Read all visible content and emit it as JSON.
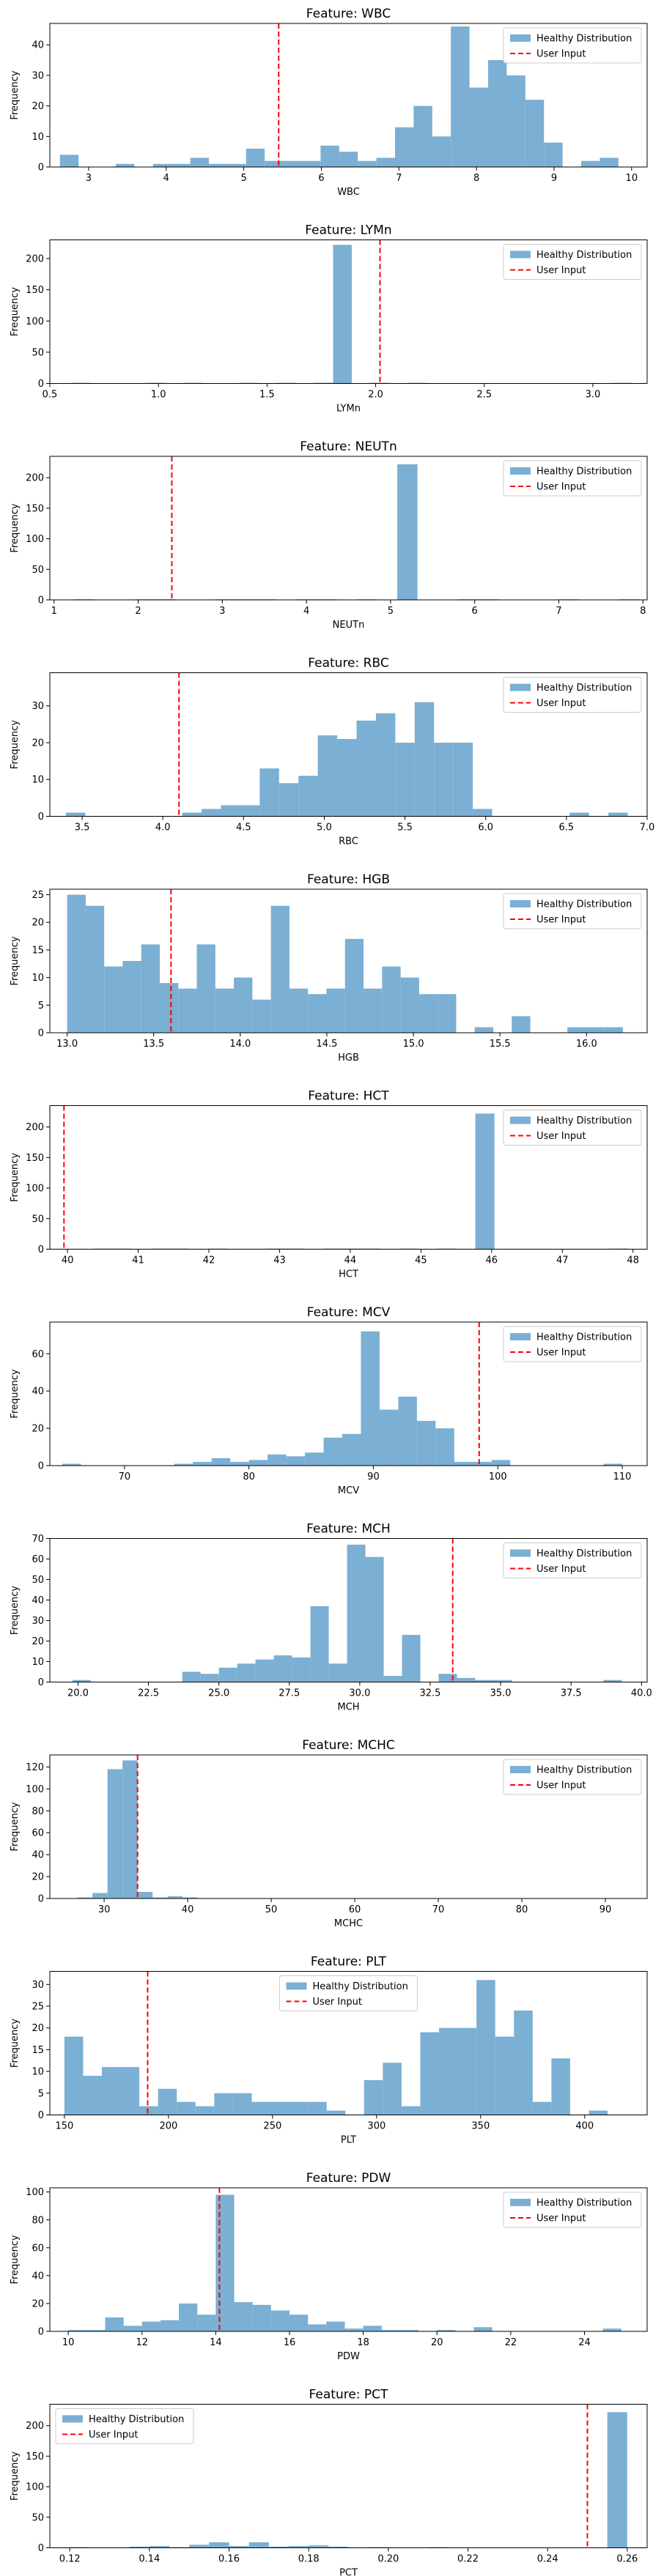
{
  "colors": {
    "bar": "#7bafd4",
    "user_line": "#ff0000",
    "axes": "#000000"
  },
  "chart_data": [
    {
      "type": "bar",
      "title": "Feature: WBC",
      "xlabel": "WBC",
      "ylabel": "Frequency",
      "xlim": [
        2.5,
        10.2
      ],
      "ylim": [
        0,
        47
      ],
      "xticks": [
        3,
        4,
        5,
        6,
        7,
        8,
        9,
        10
      ],
      "yticks": [
        0,
        10,
        20,
        30,
        40
      ],
      "user_input": 5.45,
      "legend_loc": "top-right",
      "legend": [
        "Healthy Distribution",
        "User Input"
      ],
      "bins": [
        2.63,
        2.87,
        3.11,
        3.35,
        3.59,
        3.83,
        4.07,
        4.31,
        4.55,
        4.79,
        5.03,
        5.27,
        5.51,
        5.75,
        5.99,
        6.23,
        6.47,
        6.71,
        6.95,
        7.19,
        7.43,
        7.67,
        7.91,
        8.15,
        8.39,
        8.63,
        8.87,
        9.11,
        9.35,
        9.59,
        9.83,
        10.07
      ],
      "counts": [
        4,
        0,
        0,
        1,
        0,
        1,
        1,
        3,
        1,
        1,
        6,
        2,
        2,
        2,
        7,
        5,
        2,
        3,
        13,
        20,
        10,
        46,
        26,
        35,
        30,
        22,
        8,
        0,
        2,
        3,
        0
      ]
    },
    {
      "type": "bar",
      "title": "Feature: LYMn",
      "xlabel": "LYMn",
      "ylabel": "Frequency",
      "xlim": [
        0.5,
        3.25
      ],
      "ylim": [
        0,
        230
      ],
      "xticks": [
        0.5,
        1.0,
        1.5,
        2.0,
        2.5,
        3.0
      ],
      "yticks": [
        0,
        50,
        100,
        150,
        200
      ],
      "user_input": 2.02,
      "legend_loc": "top-right",
      "legend": [
        "Healthy Distribution",
        "User Input"
      ],
      "bins": [
        0.6,
        0.686,
        0.772,
        0.858,
        0.944,
        1.03,
        1.116,
        1.202,
        1.288,
        1.374,
        1.46,
        1.546,
        1.632,
        1.718,
        1.804,
        1.89,
        1.976,
        2.062,
        2.148,
        2.234,
        2.32,
        2.406,
        2.492,
        2.578,
        2.664,
        2.75,
        2.836,
        2.922,
        3.008,
        3.094,
        3.18
      ],
      "counts": [
        1,
        0,
        0,
        0,
        1,
        0,
        1,
        0,
        0,
        1,
        0,
        1,
        0,
        1,
        222,
        0,
        1,
        0,
        1,
        0,
        0,
        0,
        0,
        0,
        0,
        0,
        0,
        0,
        0,
        1
      ]
    },
    {
      "type": "bar",
      "title": "Feature: NEUTn",
      "xlabel": "NEUTn",
      "ylabel": "Frequency",
      "xlim": [
        0.95,
        8.05
      ],
      "ylim": [
        0,
        235
      ],
      "xticks": [
        1,
        2,
        3,
        4,
        5,
        6,
        7,
        8
      ],
      "yticks": [
        0,
        50,
        100,
        150,
        200
      ],
      "user_input": 2.4,
      "legend_loc": "top-right",
      "legend": [
        "Healthy Distribution",
        "User Input"
      ],
      "bins": [
        1.24,
        1.48,
        1.72,
        1.96,
        2.2,
        2.44,
        2.68,
        2.92,
        3.16,
        3.4,
        3.64,
        3.88,
        4.12,
        4.36,
        4.6,
        4.84,
        5.08,
        5.32,
        5.56,
        5.8,
        6.04,
        6.28,
        6.52,
        6.76,
        7.0,
        7.24,
        7.48,
        7.72,
        7.96
      ],
      "counts": [
        1,
        0,
        0,
        1,
        1,
        0,
        0,
        1,
        1,
        1,
        0,
        1,
        1,
        0,
        1,
        0,
        222,
        0,
        0,
        1,
        1,
        0,
        0,
        0,
        1,
        0,
        0,
        1
      ]
    },
    {
      "type": "bar",
      "title": "Feature: RBC",
      "xlabel": "RBC",
      "ylabel": "Frequency",
      "xlim": [
        3.3,
        7.0
      ],
      "ylim": [
        0,
        39
      ],
      "xticks": [
        3.5,
        4.0,
        4.5,
        5.0,
        5.5,
        6.0,
        6.5,
        7.0
      ],
      "yticks": [
        0,
        10,
        20,
        30
      ],
      "user_input": 4.1,
      "legend_loc": "top-right",
      "legend": [
        "Healthy Distribution",
        "User Input"
      ],
      "bins": [
        3.4,
        3.52,
        3.64,
        3.76,
        3.88,
        4.0,
        4.12,
        4.24,
        4.36,
        4.48,
        4.6,
        4.72,
        4.84,
        4.96,
        5.08,
        5.2,
        5.32,
        5.44,
        5.56,
        5.68,
        5.8,
        5.92,
        6.04,
        6.16,
        6.28,
        6.4,
        6.52,
        6.64,
        6.76,
        6.88,
        7.0
      ],
      "counts": [
        1,
        0,
        0,
        0,
        0,
        0,
        1,
        2,
        3,
        3,
        13,
        9,
        11,
        22,
        21,
        26,
        28,
        20,
        31,
        20,
        20,
        2,
        0,
        0,
        0,
        0,
        1,
        0,
        1,
        0
      ]
    },
    {
      "type": "bar",
      "title": "Feature: HGB",
      "xlabel": "HGB",
      "ylabel": "Frequency",
      "xlim": [
        12.9,
        16.35
      ],
      "ylim": [
        0,
        26
      ],
      "xticks": [
        13.0,
        13.5,
        14.0,
        14.5,
        15.0,
        15.5,
        16.0
      ],
      "yticks": [
        0,
        5,
        10,
        15,
        20,
        25
      ],
      "user_input": 13.6,
      "legend_loc": "top-right",
      "legend": [
        "Healthy Distribution",
        "User Input"
      ],
      "bins": [
        13.0,
        13.107,
        13.214,
        13.321,
        13.428,
        13.535,
        13.642,
        13.749,
        13.856,
        13.963,
        14.07,
        14.177,
        14.284,
        14.391,
        14.498,
        14.605,
        14.712,
        14.819,
        14.926,
        15.033,
        15.14,
        15.247,
        15.354,
        15.461,
        15.568,
        15.675,
        15.782,
        15.889,
        15.996,
        16.103,
        16.21
      ],
      "counts": [
        25,
        23,
        12,
        13,
        16,
        9,
        8,
        16,
        8,
        10,
        6,
        23,
        8,
        7,
        8,
        17,
        8,
        12,
        10,
        7,
        7,
        0,
        1,
        0,
        3,
        0,
        0,
        1,
        1,
        1
      ]
    },
    {
      "type": "bar",
      "title": "Feature: HCT",
      "xlabel": "HCT",
      "ylabel": "Frequency",
      "xlim": [
        39.75,
        48.2
      ],
      "ylim": [
        0,
        235
      ],
      "xticks": [
        40,
        41,
        42,
        43,
        44,
        45,
        46,
        47,
        48
      ],
      "yticks": [
        0,
        50,
        100,
        150,
        200
      ],
      "user_input": 39.95,
      "legend_loc": "top-right",
      "legend": [
        "Healthy Distribution",
        "User Input"
      ],
      "bins": [
        40.1,
        40.37,
        40.64,
        40.91,
        41.18,
        41.45,
        41.72,
        41.99,
        42.26,
        42.53,
        42.8,
        43.07,
        43.34,
        43.61,
        43.88,
        44.15,
        44.42,
        44.69,
        44.96,
        45.23,
        45.5,
        45.77,
        46.04,
        46.31,
        46.58,
        46.85,
        47.12,
        47.39,
        47.66,
        47.93
      ],
      "counts": [
        0,
        1,
        1,
        0,
        1,
        1,
        0,
        1,
        0,
        0,
        1,
        1,
        0,
        1,
        1,
        1,
        0,
        1,
        0,
        1,
        0,
        222,
        0,
        0,
        0,
        0,
        0,
        0,
        1
      ]
    },
    {
      "type": "bar",
      "title": "Feature: MCV",
      "xlabel": "MCV",
      "ylabel": "Frequency",
      "xlim": [
        64,
        112
      ],
      "ylim": [
        0,
        77
      ],
      "xticks": [
        70,
        80,
        90,
        100,
        110
      ],
      "yticks": [
        0,
        20,
        40,
        60
      ],
      "user_input": 98.5,
      "legend_loc": "top-right",
      "legend": [
        "Healthy Distribution",
        "User Input"
      ],
      "bins": [
        65.0,
        66.5,
        68.0,
        69.5,
        71.0,
        72.5,
        74.0,
        75.5,
        77.0,
        78.5,
        80.0,
        81.5,
        83.0,
        84.5,
        86.0,
        87.5,
        89.0,
        90.5,
        92.0,
        93.5,
        95.0,
        96.5,
        98.0,
        99.5,
        101.0,
        102.5,
        104.0,
        105.5,
        107.0,
        108.5,
        110.0,
        111.5
      ],
      "counts": [
        1,
        0,
        0,
        0,
        0,
        0,
        1,
        2,
        4,
        2,
        3,
        6,
        5,
        7,
        15,
        17,
        72,
        30,
        37,
        24,
        20,
        2,
        2,
        3,
        0,
        0,
        0,
        0,
        0,
        1,
        0
      ]
    },
    {
      "type": "bar",
      "title": "Feature: MCH",
      "xlabel": "MCH",
      "ylabel": "Frequency",
      "xlim": [
        19,
        40.2
      ],
      "ylim": [
        0,
        70
      ],
      "xticks": [
        20.0,
        22.5,
        25.0,
        27.5,
        30.0,
        32.5,
        35.0,
        37.5,
        40.0
      ],
      "yticks": [
        0,
        10,
        20,
        30,
        40,
        50,
        60,
        70
      ],
      "user_input": 33.3,
      "legend_loc": "top-right",
      "legend": [
        "Healthy Distribution",
        "User Input"
      ],
      "bins": [
        19.8,
        20.45,
        21.1,
        21.75,
        22.4,
        23.05,
        23.7,
        24.35,
        25.0,
        25.65,
        26.3,
        26.95,
        27.6,
        28.25,
        28.9,
        29.55,
        30.2,
        30.85,
        31.5,
        32.15,
        32.8,
        33.45,
        34.1,
        34.75,
        35.4,
        36.05,
        36.7,
        37.35,
        38.0,
        38.65,
        39.3
      ],
      "counts": [
        1,
        0,
        0,
        0,
        0,
        0,
        5,
        4,
        7,
        9,
        11,
        13,
        12,
        37,
        9,
        67,
        61,
        3,
        23,
        0,
        4,
        2,
        1,
        1,
        0,
        0,
        0,
        0,
        0,
        1
      ]
    },
    {
      "type": "bar",
      "title": "Feature: MCHC",
      "xlabel": "MCHC",
      "ylabel": "Frequency",
      "xlim": [
        23.5,
        95
      ],
      "ylim": [
        0,
        131
      ],
      "xticks": [
        30,
        40,
        50,
        60,
        70,
        80,
        90
      ],
      "yticks": [
        0,
        20,
        40,
        60,
        80,
        100,
        120
      ],
      "user_input": 34.0,
      "legend_loc": "top-right",
      "legend": [
        "Healthy Distribution",
        "User Input"
      ],
      "bins": [
        26.8,
        28.6,
        30.4,
        32.2,
        34.0,
        35.8,
        37.6,
        39.4,
        41.2
      ],
      "counts": [
        1,
        5,
        118,
        126,
        6,
        1,
        2,
        1
      ]
    },
    {
      "type": "bar",
      "title": "Feature: PLT",
      "xlabel": "PLT",
      "ylabel": "Frequency",
      "xlim": [
        143,
        430
      ],
      "ylim": [
        0,
        33
      ],
      "xticks": [
        150,
        200,
        250,
        300,
        350,
        400
      ],
      "yticks": [
        0,
        5,
        10,
        15,
        20,
        25,
        30
      ],
      "user_input": 190,
      "legend_loc": "top-center",
      "legend": [
        "Healthy Distribution",
        "User Input"
      ],
      "bins": [
        150,
        159,
        168,
        177,
        186,
        195,
        204,
        213,
        222,
        231,
        240,
        249,
        258,
        267,
        276,
        285,
        294,
        303,
        312,
        321,
        330,
        339,
        348,
        357,
        366,
        375,
        384,
        393,
        402,
        411,
        420
      ],
      "counts": [
        18,
        9,
        11,
        11,
        2,
        6,
        3,
        2,
        5,
        5,
        3,
        3,
        3,
        3,
        1,
        0,
        8,
        12,
        2,
        19,
        20,
        20,
        31,
        18,
        24,
        3,
        13,
        0,
        1,
        0
      ]
    },
    {
      "type": "bar",
      "title": "Feature: PDW",
      "xlabel": "PDW",
      "ylabel": "Frequency",
      "xlim": [
        9.5,
        25.7
      ],
      "ylim": [
        0,
        103
      ],
      "xticks": [
        10,
        12,
        14,
        16,
        18,
        20,
        22,
        24
      ],
      "yticks": [
        0,
        20,
        40,
        60,
        80,
        100
      ],
      "user_input": 14.1,
      "legend_loc": "top-right",
      "legend": [
        "Healthy Distribution",
        "User Input"
      ],
      "bins": [
        10.0,
        10.5,
        11.0,
        11.5,
        12.0,
        12.5,
        13.0,
        13.5,
        14.0,
        14.5,
        15.0,
        15.5,
        16.0,
        16.5,
        17.0,
        17.5,
        18.0,
        18.5,
        19.0,
        19.5,
        20.0,
        20.5,
        21.0,
        21.5,
        22.0,
        22.5,
        23.0,
        23.5,
        24.0,
        24.5,
        25.0
      ],
      "counts": [
        1,
        1,
        10,
        4,
        7,
        8,
        20,
        12,
        98,
        21,
        19,
        15,
        12,
        5,
        7,
        2,
        4,
        1,
        1,
        0,
        1,
        0,
        3,
        0,
        0,
        0,
        0,
        0,
        0,
        2
      ]
    },
    {
      "type": "bar",
      "title": "Feature: PCT",
      "xlabel": "PCT",
      "ylabel": "Frequency",
      "xlim": [
        0.115,
        0.265
      ],
      "ylim": [
        0,
        235
      ],
      "xticks": [
        0.12,
        0.14,
        0.16,
        0.18,
        0.2,
        0.22,
        0.24,
        0.26
      ],
      "yticks": [
        0,
        50,
        100,
        150,
        200
      ],
      "user_input": 0.25,
      "legend_loc": "top-left",
      "legend": [
        "Healthy Distribution",
        "User Input"
      ],
      "bins": [
        0.12,
        0.125,
        0.13,
        0.135,
        0.14,
        0.145,
        0.15,
        0.155,
        0.16,
        0.165,
        0.17,
        0.175,
        0.18,
        0.185,
        0.19,
        0.195,
        0.2,
        0.205,
        0.21,
        0.215,
        0.22,
        0.225,
        0.23,
        0.235,
        0.24,
        0.245,
        0.25,
        0.255,
        0.26
      ],
      "counts": [
        1,
        0,
        0,
        2,
        3,
        1,
        5,
        9,
        3,
        9,
        2,
        3,
        4,
        2,
        0,
        1,
        0,
        0,
        1,
        0,
        0,
        0,
        0,
        0,
        0,
        0,
        0,
        222
      ]
    }
  ]
}
